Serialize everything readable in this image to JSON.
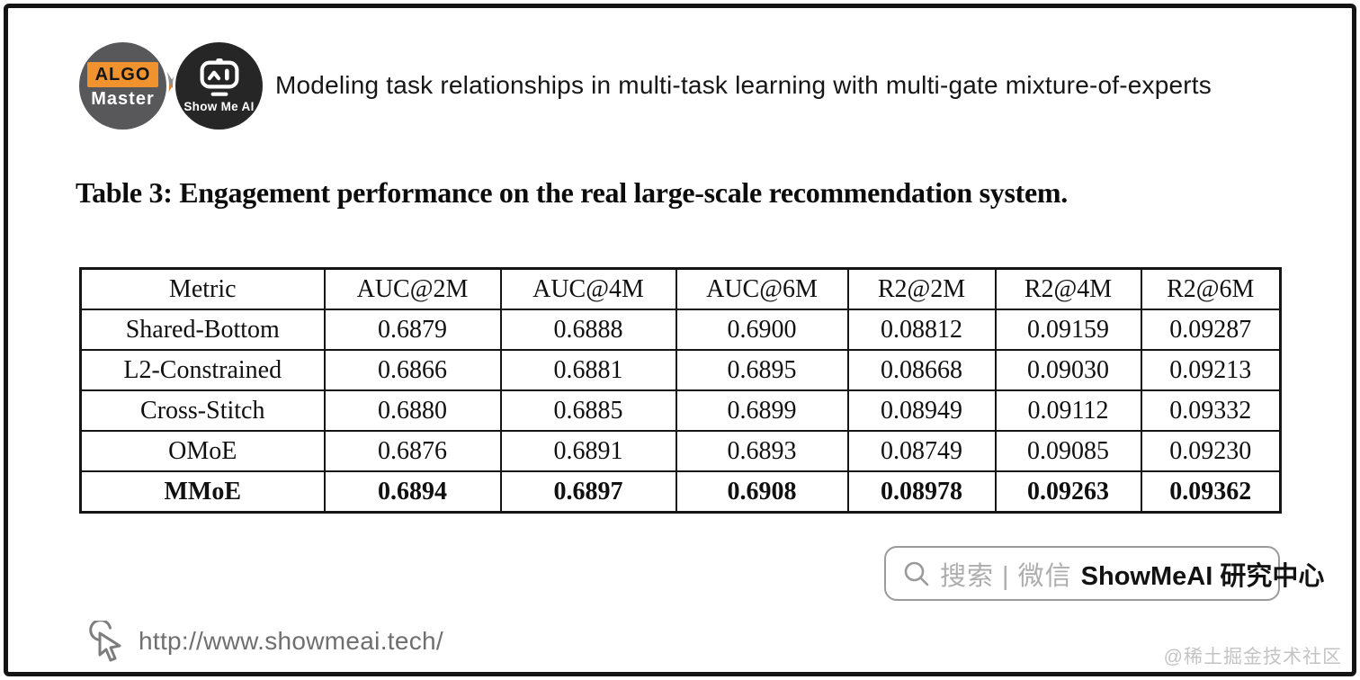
{
  "header": {
    "logo_algo": {
      "line1": "ALGO",
      "line2": "Master"
    },
    "cross": "X",
    "logo_showmeai": {
      "label": "Show Me AI"
    },
    "title": "Modeling task relationships in multi-task learning with multi-gate mixture-of-experts"
  },
  "caption": "Table 3: Engagement performance on the real large-scale recommendation system.",
  "table": {
    "columns": [
      "Metric",
      "AUC@2M",
      "AUC@4M",
      "AUC@6M",
      "R2@2M",
      "R2@4M",
      "R2@6M"
    ],
    "rows": [
      {
        "metric": "Shared-Bottom",
        "values": [
          "0.6879",
          "0.6888",
          "0.6900",
          "0.08812",
          "0.09159",
          "0.09287"
        ],
        "bold": false
      },
      {
        "metric": "L2-Constrained",
        "values": [
          "0.6866",
          "0.6881",
          "0.6895",
          "0.08668",
          "0.09030",
          "0.09213"
        ],
        "bold": false
      },
      {
        "metric": "Cross-Stitch",
        "values": [
          "0.6880",
          "0.6885",
          "0.6899",
          "0.08949",
          "0.09112",
          "0.09332"
        ],
        "bold": false
      },
      {
        "metric": "OMoE",
        "values": [
          "0.6876",
          "0.6891",
          "0.6893",
          "0.08749",
          "0.09085",
          "0.09230"
        ],
        "bold": false
      },
      {
        "metric": "MMoE",
        "values": [
          "0.6894",
          "0.6897",
          "0.6908",
          "0.08978",
          "0.09263",
          "0.09362"
        ],
        "bold": true
      }
    ]
  },
  "search_box": {
    "icon": "search-icon",
    "hint": "搜索 | 微信",
    "brand": "ShowMeAI 研究中心"
  },
  "footer": {
    "url": "http://www.showmeai.tech/",
    "watermark": "@稀土掘金技术社区"
  },
  "colors": {
    "accent_orange": "#f0932f",
    "logo_gray": "#58585a",
    "logo_dark": "#262626",
    "border_black": "#151515",
    "muted_gray": "#adadad",
    "watermark_gray": "#c4c4c4"
  },
  "chart_data": {
    "type": "table",
    "title": "Table 3: Engagement performance on the real large-scale recommendation system.",
    "columns": [
      "Metric",
      "AUC@2M",
      "AUC@4M",
      "AUC@6M",
      "R2@2M",
      "R2@4M",
      "R2@6M"
    ],
    "rows": [
      [
        "Shared-Bottom",
        0.6879,
        0.6888,
        0.69,
        0.08812,
        0.09159,
        0.09287
      ],
      [
        "L2-Constrained",
        0.6866,
        0.6881,
        0.6895,
        0.08668,
        0.0903,
        0.09213
      ],
      [
        "Cross-Stitch",
        0.688,
        0.6885,
        0.6899,
        0.08949,
        0.09112,
        0.09332
      ],
      [
        "OMoE",
        0.6876,
        0.6891,
        0.6893,
        0.08749,
        0.09085,
        0.0923
      ],
      [
        "MMoE",
        0.6894,
        0.6897,
        0.6908,
        0.08978,
        0.09263,
        0.09362
      ]
    ],
    "notes": "MMoE row is bold (best results)"
  }
}
